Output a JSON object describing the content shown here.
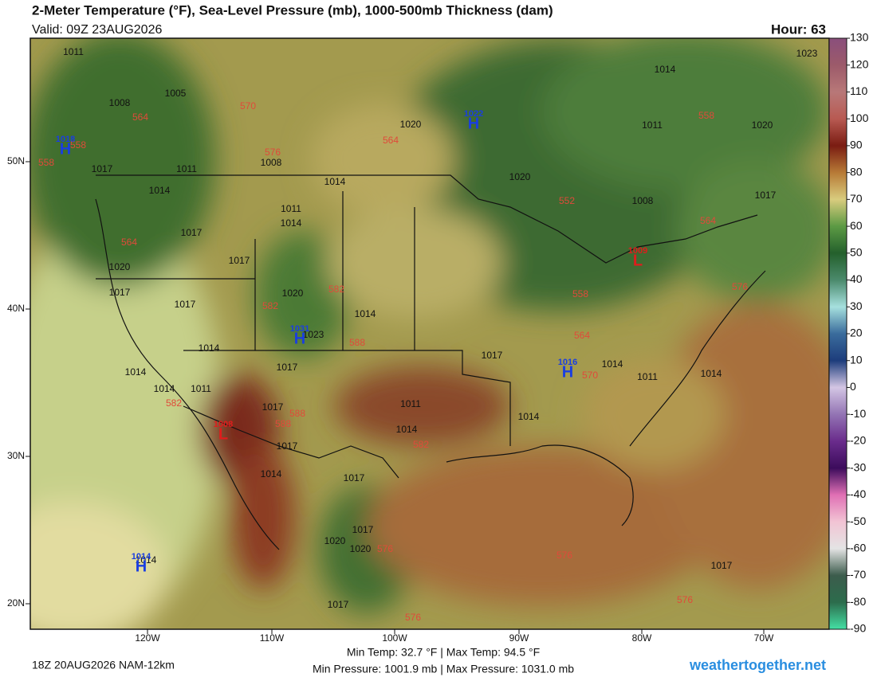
{
  "header": {
    "title": "2-Meter Temperature (°F), Sea-Level Pressure (mb), 1000-500mb Thickness (dam)",
    "valid": "Valid: 09Z 23AUG2026",
    "hour": "Hour: 63"
  },
  "colorbar": {
    "ticks": [
      130,
      120,
      110,
      100,
      90,
      80,
      70,
      60,
      50,
      40,
      30,
      20,
      10,
      0,
      -10,
      -20,
      -30,
      -40,
      -50,
      -60,
      -70,
      -80,
      -90
    ]
  },
  "axes": {
    "lat_labels": [
      "50N",
      "40N",
      "30N",
      "20N"
    ],
    "lon_labels": [
      "120W",
      "110W",
      "100W",
      "90W",
      "80W",
      "70W"
    ]
  },
  "isobar_labels": [
    "1011",
    "1008",
    "1005",
    "1017",
    "1011",
    "1014",
    "1008",
    "1014",
    "1011",
    "1014",
    "1017",
    "1017",
    "1020",
    "1017",
    "1020",
    "1017",
    "1023",
    "1014",
    "1014",
    "1017",
    "1014",
    "1014",
    "1011",
    "1017",
    "1017",
    "1014",
    "1017",
    "1011",
    "1014",
    "1017",
    "1014",
    "1014",
    "1011",
    "1014",
    "1017",
    "1020",
    "1020",
    "1017",
    "1020",
    "1020",
    "1014",
    "1011",
    "1008",
    "1017",
    "1020",
    "1023",
    "1017",
    "1014"
  ],
  "thickness_labels": [
    "558",
    "558",
    "564",
    "570",
    "576",
    "564",
    "552",
    "564",
    "558",
    "564",
    "582",
    "582",
    "588",
    "576",
    "558",
    "564",
    "570",
    "582",
    "588",
    "588",
    "582",
    "576",
    "576",
    "576",
    "576"
  ],
  "centers": [
    {
      "letter": "H",
      "value": "1018"
    },
    {
      "letter": "H",
      "value": "1022"
    },
    {
      "letter": "H",
      "value": "1031"
    },
    {
      "letter": "H",
      "value": "1016"
    },
    {
      "letter": "H",
      "value": "1014"
    },
    {
      "letter": "L",
      "value": "1008"
    },
    {
      "letter": "L",
      "value": "1009"
    }
  ],
  "footer": {
    "run": "18Z 20AUG2026 NAM-12km",
    "temps": "Min Temp:  32.7 °F | Max Temp:  94.5 °F",
    "pressures": "Min Pressure: 1001.9 mb | Max Pressure: 1031.0 mb",
    "site": "weathertogether.net"
  }
}
